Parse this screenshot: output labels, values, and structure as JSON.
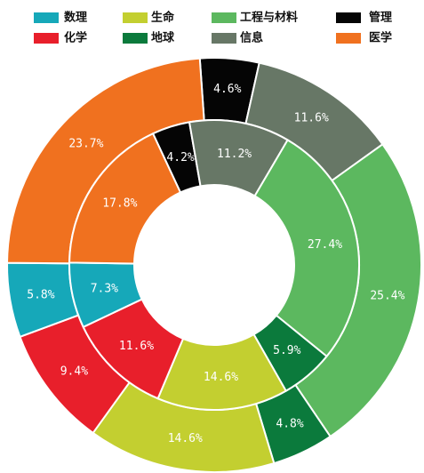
{
  "chart_data": {
    "type": "nested-donut",
    "categories": [
      "管理",
      "信息",
      "工程与材料",
      "地球",
      "生命",
      "化学",
      "数理",
      "医学"
    ],
    "colors": [
      "#050505",
      "#677766",
      "#5cb85f",
      "#0b7a3c",
      "#c3cf30",
      "#e81f2b",
      "#16a8b9",
      "#f0711f"
    ],
    "rings": [
      {
        "values": [
          4.6,
          11.6,
          25.4,
          4.8,
          14.6,
          9.4,
          5.8,
          23.7
        ],
        "value_labels": [
          "4.6%",
          "11.6%",
          "25.4%",
          "4.8%",
          "14.6%",
          "9.4%",
          "5.8%",
          "23.7%"
        ]
      },
      {
        "values": [
          4.2,
          11.2,
          27.4,
          5.9,
          14.6,
          11.6,
          7.3,
          17.8
        ],
        "value_labels": [
          "4.2%",
          "11.2%",
          "27.4%",
          "5.9%",
          "14.6%",
          "11.6%",
          "7.3%",
          "17.8%"
        ]
      }
    ]
  }
}
